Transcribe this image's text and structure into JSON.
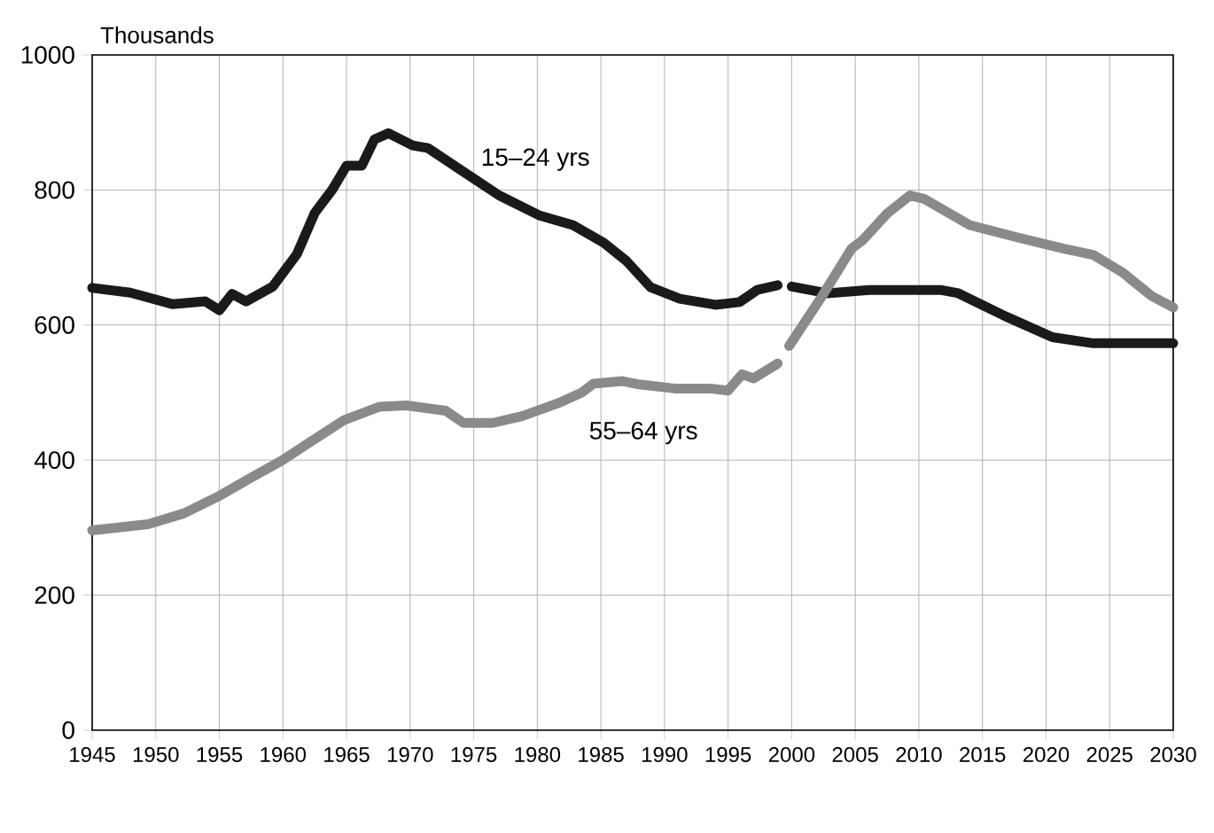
{
  "chart_data": {
    "type": "line",
    "ylabel": "Thousands",
    "xlim": [
      1945,
      2030
    ],
    "xticks": [
      1945,
      1950,
      1955,
      1960,
      1965,
      1970,
      1975,
      1980,
      1985,
      1990,
      1995,
      2000,
      2005,
      2010,
      2015,
      2020,
      2025,
      2030
    ],
    "ylim": [
      0,
      1000
    ],
    "yticks": [
      0,
      200,
      400,
      600,
      800,
      1000
    ],
    "grid": true,
    "series": [
      {
        "name": "15–24 yrs",
        "color": "#1a1a1a",
        "x": [
          1945,
          1948,
          1951.3,
          1953.9,
          1955,
          1956,
          1957.1,
          1959.2,
          1961.1,
          1962.5,
          1963.9,
          1965,
          1966.2,
          1967.2,
          1968.3,
          1970.2,
          1971.4,
          1974.2,
          1977,
          1980.2,
          1982.8,
          1985.2,
          1987,
          1988.9,
          1991.2,
          1994,
          1995.9,
          1997.3,
          1998.9,
          1999.4,
          2000,
          2002.8,
          2006.1,
          2011.7,
          2013.1,
          2016.8,
          2020.5,
          2023.7,
          2030
        ],
        "values": [
          655,
          648,
          631,
          635,
          622,
          646,
          635,
          657,
          705,
          766,
          801,
          836,
          836,
          875,
          884,
          866,
          862,
          827,
          792,
          762,
          748,
          722,
          695,
          656,
          639,
          630,
          634,
          652,
          659,
          null,
          657,
          647,
          652,
          652,
          647,
          613,
          582,
          573,
          573
        ]
      },
      {
        "name": "55–64 yrs",
        "color": "#8a8a8a",
        "x": [
          1945,
          1949.4,
          1952.2,
          1955,
          1957.4,
          1959.9,
          1962,
          1964.8,
          1967.6,
          1969.7,
          1972.8,
          1974.2,
          1976.5,
          1978.8,
          1981.6,
          1983.5,
          1984.4,
          1986.7,
          1988,
          1990.8,
          1993.6,
          1995,
          1996.1,
          1997,
          1998.9,
          1999.4,
          1999.8,
          2002.4,
          2004.7,
          2005.6,
          2007.5,
          2009.3,
          2010.4,
          2014,
          2017.7,
          2021.4,
          2023.7,
          2026,
          2028.3,
          2030
        ],
        "values": [
          296,
          305,
          321,
          347,
          373,
          399,
          425,
          459,
          479,
          481,
          473,
          455,
          455,
          465,
          484,
          500,
          513,
          517,
          512,
          506,
          506,
          503,
          527,
          521,
          543,
          null,
          569,
          643,
          713,
          726,
          765,
          792,
          787,
          748,
          730,
          713,
          704,
          678,
          643,
          626
        ]
      }
    ]
  }
}
